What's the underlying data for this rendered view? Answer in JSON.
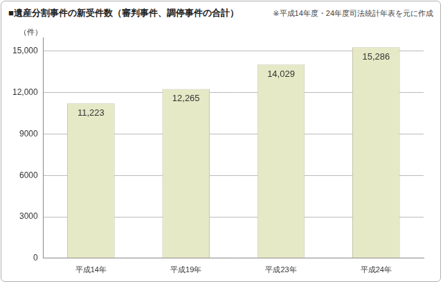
{
  "chart_data": {
    "type": "bar",
    "title": "■遺産分割事件の新受件数（審判事件、調停事件の合計）",
    "subtitle": "※平成14年度・24年度司法統計年表を元に作成",
    "y_label": "（件）",
    "categories": [
      "平成14年",
      "平成19年",
      "平成23年",
      "平成24年"
    ],
    "values": [
      11223,
      12265,
      14029,
      15286
    ],
    "value_labels": [
      "11,223",
      "12,265",
      "14,029",
      "15,286"
    ],
    "color": "#e6e9c6",
    "ylim": [
      0,
      16000
    ],
    "yticks": [
      0,
      3000,
      6000,
      9000,
      {
        "value": 12000,
        "label": "12,000"
      },
      {
        "value": 15000,
        "label": "15,000"
      }
    ],
    "grid": true,
    "data_labels": true
  }
}
